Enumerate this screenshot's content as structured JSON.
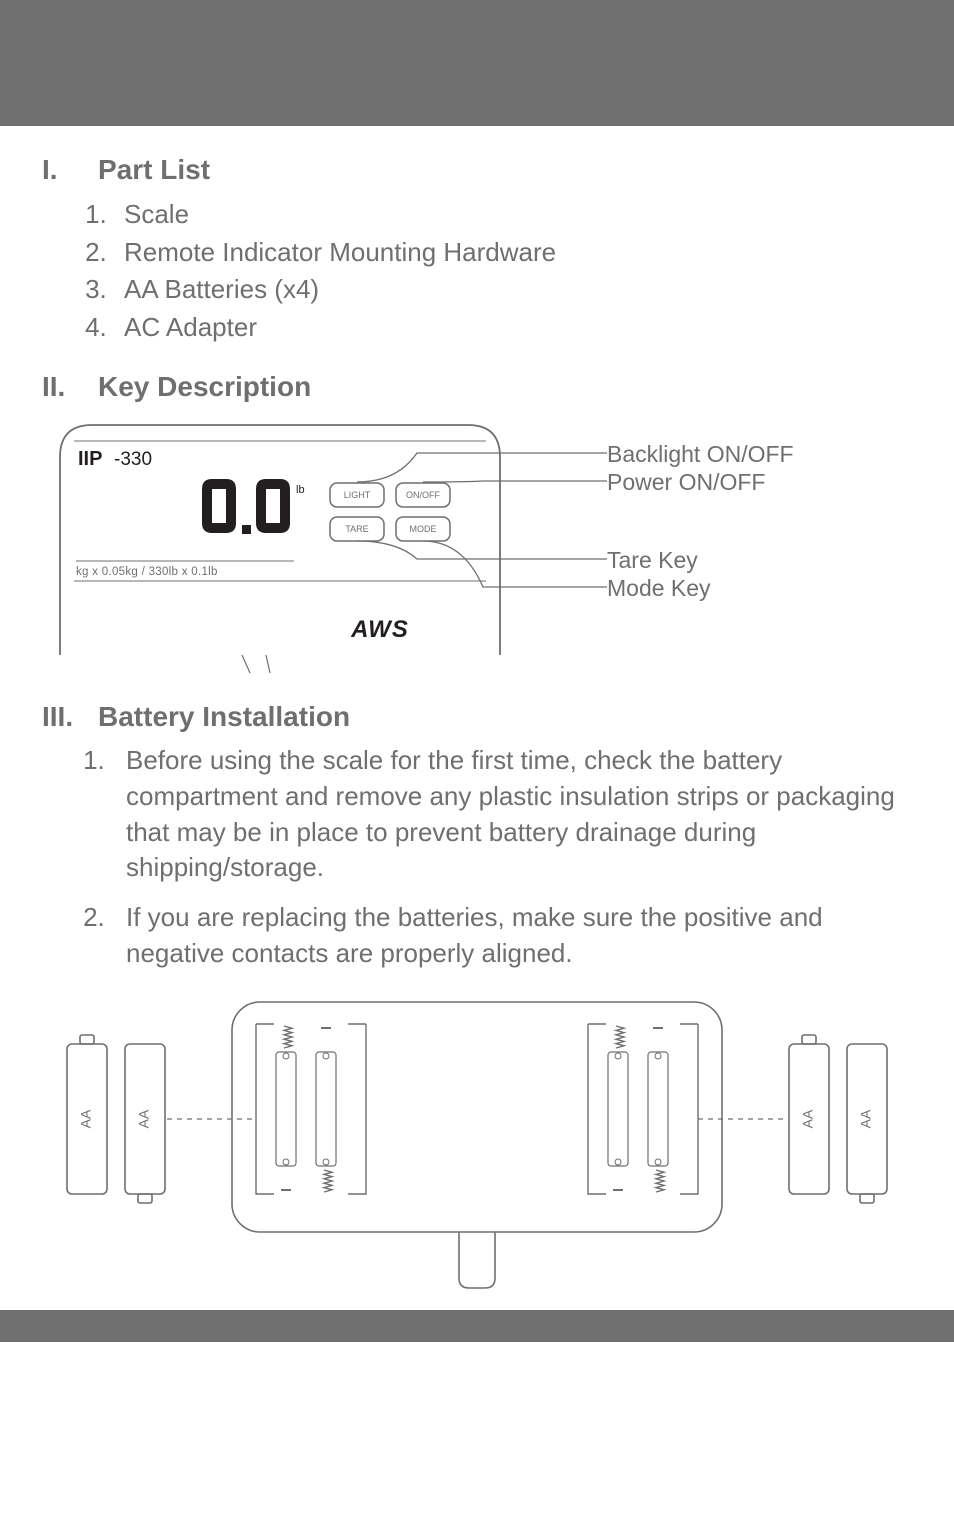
{
  "sections": {
    "part_list": {
      "roman": "I.",
      "title": "Part List",
      "items": [
        "Scale",
        "Remote Indicator Mounting Hardware",
        "AA Batteries (x4)",
        "AC Adapter"
      ]
    },
    "key_desc": {
      "roman": "II.",
      "title": "Key Description"
    },
    "battery": {
      "roman": "III.",
      "title": "Battery Installation",
      "items": [
        "Before using the scale for the first time, check the battery compartment and remove any plastic insulation strips or packaging that may be in place to prevent battery drainage during shipping/storage.",
        "If you are replacing the batteries, make sure the positive and negative contacts are properly aligned."
      ]
    }
  },
  "indicator": {
    "model_prefix": "IIP",
    "model_suffix": "-330",
    "display_value": "0.0",
    "unit": "lb",
    "spec_line": "kg x 0.05kg  /  330lb x 0.1lb",
    "brand": "AWS",
    "buttons": {
      "light": "LIGHT",
      "onoff": "ON/OFF",
      "tare": "TARE",
      "mode": "MODE"
    },
    "callouts": {
      "backlight": "Backlight ON/OFF",
      "power": "Power ON/OFF",
      "tare": "Tare Key",
      "mode": "Mode Key"
    },
    "colors": {
      "stroke": "#6f6f6f",
      "fill": "#ffffff",
      "text": "#6f6f6f",
      "black": "#231f20"
    }
  },
  "battery_diagram": {
    "batt_label": "AA",
    "colors": {
      "stroke": "#6f6f6f",
      "fill": "#ffffff"
    }
  }
}
